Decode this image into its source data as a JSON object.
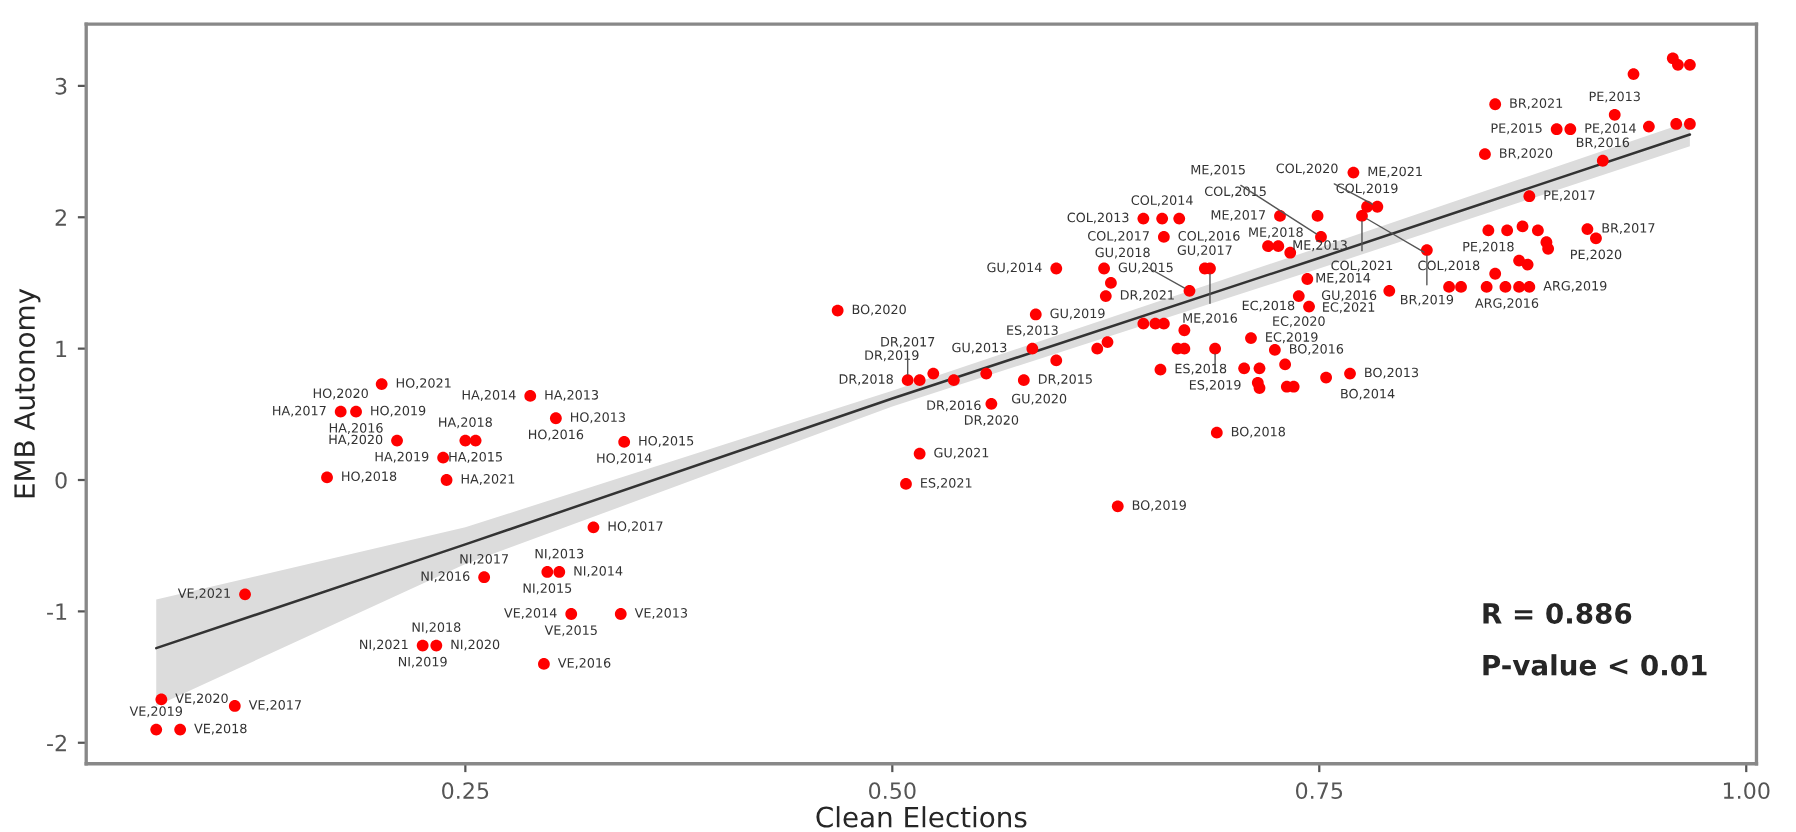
{
  "chart_data": {
    "type": "scatter",
    "xlabel": "Clean Elections",
    "ylabel": "EMB Autonomy",
    "xlim": [
      0.028,
      1.006
    ],
    "ylim": [
      -2.16,
      3.47
    ],
    "xticks": [
      0.25,
      {
        "value": 0.5,
        "label": "0.50"
      },
      0.75,
      {
        "value": 1.0,
        "label": "1.00"
      }
    ],
    "yticks": [
      -2,
      -1,
      0,
      1,
      2,
      3
    ],
    "grid": false,
    "series": [
      {
        "type": "line",
        "color": "#333333",
        "x": [
          0.069,
          0.25,
          0.5,
          0.75,
          0.967
        ],
        "values": [
          -1.28,
          -0.49,
          0.62,
          1.69,
          2.63
        ],
        "lower": [
          -1.72,
          -0.64,
          0.56,
          1.61,
          2.54
        ],
        "upper": [
          -0.91,
          -0.36,
          0.68,
          1.77,
          2.73
        ]
      },
      {
        "color": "#ff0000",
        "marker": "circle",
        "x": [
          0.177,
          0.186,
          0.201,
          0.288,
          0.21,
          0.237,
          0.239,
          0.25,
          0.256,
          0.303,
          0.343,
          0.169,
          0.325,
          0.298,
          0.305,
          0.261,
          0.312,
          0.341,
          0.225,
          0.233,
          0.296,
          0.121,
          0.072,
          0.115,
          0.069,
          0.083,
          0.468,
          0.516,
          0.524,
          0.509,
          0.536,
          0.555,
          0.558,
          0.577,
          0.596,
          0.582,
          0.584,
          0.596,
          0.624,
          0.628,
          0.625,
          0.62,
          0.626,
          0.516,
          0.508,
          0.632,
          0.647,
          0.658,
          0.659,
          0.647,
          0.654,
          0.659,
          0.667,
          0.671,
          0.657,
          0.671,
          0.674,
          0.853,
          0.847,
          0.889,
          0.897,
          0.923,
          0.943,
          0.934,
          0.957,
          0.96,
          0.967,
          0.959,
          0.967,
          0.916,
          0.873,
          0.77,
          0.778,
          0.784,
          0.775,
          0.727,
          0.749,
          0.751,
          0.72,
          0.726,
          0.733,
          0.683,
          0.686,
          0.743,
          0.738,
          0.744,
          0.791,
          0.813,
          0.849,
          0.86,
          0.869,
          0.878,
          0.883,
          0.884,
          0.907,
          0.912,
          0.867,
          0.872,
          0.853,
          0.826,
          0.833,
          0.848,
          0.859,
          0.867,
          0.873,
          0.689,
          0.71,
          0.724,
          0.73,
          0.706,
          0.715,
          0.714,
          0.715,
          0.731,
          0.735,
          0.754,
          0.768,
          0.69,
          0.668
        ],
        "values": [
          0.52,
          0.52,
          0.73,
          0.64,
          0.3,
          0.17,
          0.0,
          0.3,
          0.3,
          0.47,
          0.29,
          0.02,
          -0.36,
          -0.7,
          -0.7,
          -0.74,
          -1.02,
          -1.02,
          -1.26,
          -1.26,
          -1.4,
          -0.87,
          -1.67,
          -1.72,
          -1.9,
          -1.9,
          1.29,
          0.76,
          0.81,
          0.76,
          0.76,
          0.81,
          0.58,
          0.76,
          0.91,
          1.0,
          1.26,
          1.61,
          1.61,
          1.5,
          1.4,
          1.0,
          1.05,
          0.2,
          -0.03,
          -0.2,
          1.99,
          1.99,
          1.85,
          1.19,
          1.19,
          1.19,
          1.0,
          1.0,
          0.84,
          1.14,
          1.44,
          2.86,
          2.48,
          2.67,
          2.67,
          2.78,
          2.69,
          3.09,
          3.21,
          3.16,
          3.16,
          2.71,
          2.71,
          2.43,
          2.16,
          2.34,
          2.08,
          2.08,
          2.01,
          2.01,
          2.01,
          1.85,
          1.78,
          1.78,
          1.73,
          1.61,
          1.61,
          1.53,
          1.4,
          1.32,
          1.44,
          1.75,
          1.9,
          1.9,
          1.93,
          1.9,
          1.81,
          1.76,
          1.91,
          1.84,
          1.67,
          1.64,
          1.57,
          1.47,
          1.47,
          1.47,
          1.47,
          1.47,
          1.47,
          1.0,
          1.08,
          0.99,
          0.88,
          0.85,
          0.85,
          0.74,
          0.7,
          0.71,
          0.71,
          0.78,
          0.81,
          0.36,
          1.99
        ]
      }
    ],
    "annotations": [
      {
        "text": "HO,2019",
        "x": 0.186,
        "y": 0.52
      },
      {
        "text": "HO,2021",
        "x": 0.201,
        "y": 0.73
      },
      {
        "text": "HA,2017",
        "x": 0.177,
        "y": 0.52
      },
      {
        "text": "HO,2020",
        "x": 0.177,
        "y": 0.52
      },
      {
        "text": "HA,2016",
        "x": 0.186,
        "y": 0.52
      },
      {
        "text": "HA,2018",
        "x": 0.25,
        "y": 0.3
      },
      {
        "text": "HA,2013",
        "x": 0.288,
        "y": 0.64
      },
      {
        "text": "HA,2014",
        "x": 0.288,
        "y": 0.64
      },
      {
        "text": "HO,2013",
        "x": 0.303,
        "y": 0.47
      },
      {
        "text": "HO,2016",
        "x": 0.303,
        "y": 0.47
      },
      {
        "text": "HA,2015",
        "x": 0.256,
        "y": 0.3
      },
      {
        "text": "HO,2015",
        "x": 0.343,
        "y": 0.29
      },
      {
        "text": "HA,2019",
        "x": 0.237,
        "y": 0.17
      },
      {
        "text": "HO,2018",
        "x": 0.169,
        "y": 0.02
      },
      {
        "text": "HA,2020",
        "x": 0.21,
        "y": 0.3
      },
      {
        "text": "HA,2021",
        "x": 0.239,
        "y": 0.0
      },
      {
        "text": "HO,2014",
        "x": 0.343,
        "y": 0.29
      },
      {
        "text": "HO,2017",
        "x": 0.325,
        "y": -0.36
      },
      {
        "text": "NI,2014",
        "x": 0.305,
        "y": -0.7
      },
      {
        "text": "NI,2016",
        "x": 0.261,
        "y": -0.74
      },
      {
        "text": "NI,2013",
        "x": 0.305,
        "y": -0.7
      },
      {
        "text": "NI,2017",
        "x": 0.261,
        "y": -0.74
      },
      {
        "text": "VE,2021",
        "x": 0.121,
        "y": -0.87
      },
      {
        "text": "NI,2015",
        "x": 0.298,
        "y": -0.7
      },
      {
        "text": "VE,2013",
        "x": 0.341,
        "y": -1.02
      },
      {
        "text": "NI,2020",
        "x": 0.233,
        "y": -1.26
      },
      {
        "text": "VE,2014",
        "x": 0.312,
        "y": -1.02
      },
      {
        "text": "VE,2015",
        "x": 0.312,
        "y": -1.02
      },
      {
        "text": "NI,2021",
        "x": 0.225,
        "y": -1.26
      },
      {
        "text": "NI,2018",
        "x": 0.233,
        "y": -1.26
      },
      {
        "text": "NI,2019",
        "x": 0.225,
        "y": -1.26
      },
      {
        "text": "VE,2016",
        "x": 0.296,
        "y": -1.4
      },
      {
        "text": "VE,2020",
        "x": 0.072,
        "y": -1.67
      },
      {
        "text": "VE,2017",
        "x": 0.115,
        "y": -1.72
      },
      {
        "text": "VE,2019",
        "x": 0.069,
        "y": -1.9
      },
      {
        "text": "VE,2018",
        "x": 0.083,
        "y": -1.9
      },
      {
        "text": "BO,2020",
        "x": 0.468,
        "y": 1.29
      },
      {
        "text": "ES,2013",
        "x": 0.582,
        "y": 1.0
      },
      {
        "text": "GU,2013",
        "x": 0.582,
        "y": 1.0
      },
      {
        "text": "GU,2014",
        "x": 0.596,
        "y": 1.61
      },
      {
        "text": "GU,2015",
        "x": 0.624,
        "y": 1.61
      },
      {
        "text": "GU,2019",
        "x": 0.584,
        "y": 1.26
      },
      {
        "text": "DR,2018",
        "x": 0.509,
        "y": 0.76
      },
      {
        "text": "DR,2019",
        "x": 0.524,
        "y": 0.81
      },
      {
        "text": "GU,2020",
        "x": 0.555,
        "y": 0.81
      },
      {
        "text": "DR,2017",
        "x": 0.509,
        "y": 0.76
      },
      {
        "text": "DR,2016",
        "x": 0.536,
        "y": 0.76
      },
      {
        "text": "DR,2015",
        "x": 0.577,
        "y": 0.76
      },
      {
        "text": "DR,2020",
        "x": 0.558,
        "y": 0.58
      },
      {
        "text": "GU,2021",
        "x": 0.516,
        "y": 0.2
      },
      {
        "text": "ES,2021",
        "x": 0.508,
        "y": -0.03
      },
      {
        "text": "BO,2019",
        "x": 0.632,
        "y": -0.2
      },
      {
        "text": "DR,2021",
        "x": 0.625,
        "y": 1.4
      },
      {
        "text": "ES,2018",
        "x": 0.657,
        "y": 0.84
      },
      {
        "text": "GU,2017",
        "x": 0.683,
        "y": 1.61
      },
      {
        "text": "COL,2013",
        "x": 0.647,
        "y": 1.99
      },
      {
        "text": "COL,2016",
        "x": 0.659,
        "y": 1.85
      },
      {
        "text": "BR,2021",
        "x": 0.853,
        "y": 2.86
      },
      {
        "text": "PE,2014",
        "x": 0.897,
        "y": 2.67
      },
      {
        "text": "PE,2015",
        "x": 0.889,
        "y": 2.67
      },
      {
        "text": "PE,2013",
        "x": 0.923,
        "y": 2.78
      },
      {
        "text": "BR,2020",
        "x": 0.847,
        "y": 2.48
      },
      {
        "text": "ME,2021",
        "x": 0.77,
        "y": 2.34
      },
      {
        "text": "PE,2017",
        "x": 0.873,
        "y": 2.16
      },
      {
        "text": "BR,2016",
        "x": 0.916,
        "y": 2.43
      },
      {
        "text": "ME,2017",
        "x": 0.727,
        "y": 2.01
      },
      {
        "text": "COL,2019",
        "x": 0.778,
        "y": 2.08
      },
      {
        "text": "COL,2020",
        "x": 0.784,
        "y": 2.08
      },
      {
        "text": "COL,2014",
        "x": 0.658,
        "y": 1.99
      },
      {
        "text": "COL,2015",
        "x": 0.668,
        "y": 1.99
      },
      {
        "text": "ME,2018",
        "x": 0.749,
        "y": 2.01
      },
      {
        "text": "COL,2021",
        "x": 0.775,
        "y": 2.01
      },
      {
        "text": "PE,2018",
        "x": 0.849,
        "y": 1.9
      },
      {
        "text": "BR,2017",
        "x": 0.907,
        "y": 1.91
      },
      {
        "text": "COL,2017",
        "x": 0.659,
        "y": 1.85
      },
      {
        "text": "ME,2015",
        "x": 0.751,
        "y": 1.85
      },
      {
        "text": "COL,2018",
        "x": 0.775,
        "y": 2.01
      },
      {
        "text": "PE,2020",
        "x": 0.912,
        "y": 1.84
      },
      {
        "text": "ME,2016",
        "x": 0.686,
        "y": 1.61
      },
      {
        "text": "ME,2014",
        "x": 0.733,
        "y": 1.73
      },
      {
        "text": "BR,2019",
        "x": 0.813,
        "y": 1.75
      },
      {
        "text": "ARG,2016",
        "x": 0.833,
        "y": 1.47
      },
      {
        "text": "GU,2016",
        "x": 0.743,
        "y": 1.53
      },
      {
        "text": "EC,2020",
        "x": 0.738,
        "y": 1.4
      },
      {
        "text": "ARG,2019",
        "x": 0.873,
        "y": 1.47
      },
      {
        "text": "EC,2021",
        "x": 0.791,
        "y": 1.44
      },
      {
        "text": "GU,2018",
        "x": 0.674,
        "y": 1.44
      },
      {
        "text": "EC,2019",
        "x": 0.71,
        "y": 1.08
      },
      {
        "text": "EC,2018",
        "x": 0.744,
        "y": 1.32
      },
      {
        "text": "ME,2013",
        "x": 0.726,
        "y": 1.78
      },
      {
        "text": "ES,2019",
        "x": 0.689,
        "y": 1.0
      },
      {
        "text": "BO,2016",
        "x": 0.724,
        "y": 0.99
      },
      {
        "text": "BO,2013",
        "x": 0.768,
        "y": 0.81
      },
      {
        "text": "BO,2014",
        "x": 0.754,
        "y": 0.78
      },
      {
        "text": "BO,2018",
        "x": 0.69,
        "y": 0.36
      },
      "R = 0.886",
      "P-value < 0.01"
    ]
  }
}
